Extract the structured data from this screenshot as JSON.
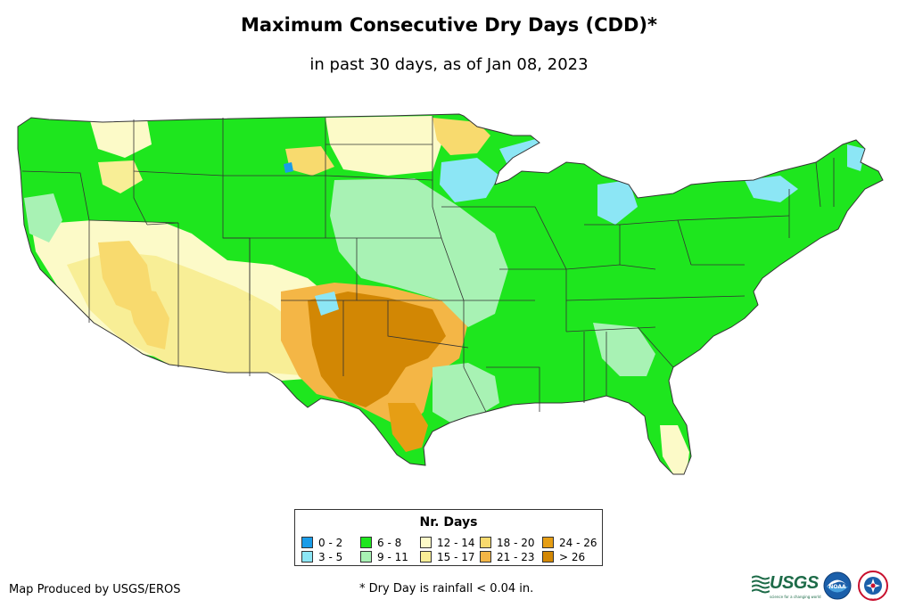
{
  "title": "Maximum Consecutive Dry Days (CDD)*",
  "subtitle": "in past 30 days, as of Jan 08, 2023",
  "legend": {
    "title": "Nr. Days",
    "items": [
      {
        "label": "0 - 2",
        "color": "#1a9ce8"
      },
      {
        "label": "3 - 5",
        "color": "#8ce6f5"
      },
      {
        "label": "6 - 8",
        "color": "#1ee61e"
      },
      {
        "label": "9 - 11",
        "color": "#a8f2b4"
      },
      {
        "label": "12 - 14",
        "color": "#fcfac8"
      },
      {
        "label": "15 - 17",
        "color": "#f8ee96"
      },
      {
        "label": "18 - 20",
        "color": "#f8da6e"
      },
      {
        "label": "21 - 23",
        "color": "#f4b646"
      },
      {
        "label": "24 - 26",
        "color": "#e69e14"
      },
      {
        "label": "> 26",
        "color": "#d28704"
      }
    ]
  },
  "footer": {
    "producer": "Map Produced by USGS/EROS",
    "note": "* Dry Day is rainfall < 0.04 in."
  },
  "logos": {
    "usgs": "USGS",
    "usgs_tagline": "science for a changing world",
    "noaa": "NOAA",
    "nws": "NWS"
  }
}
